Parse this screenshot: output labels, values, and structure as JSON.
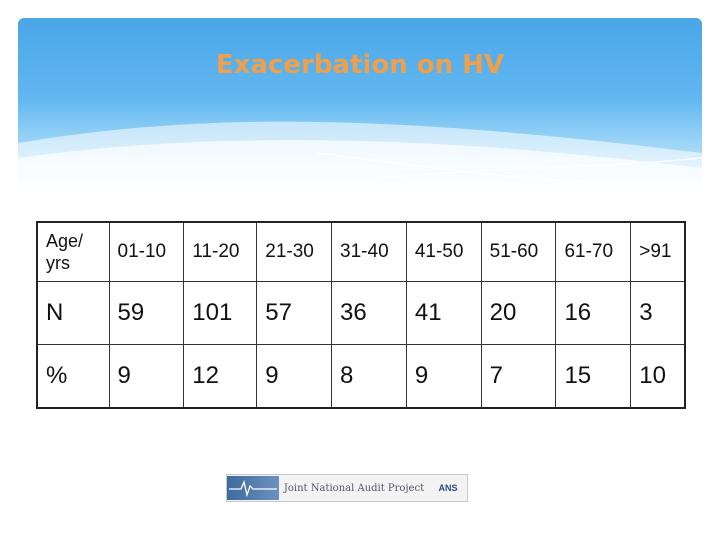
{
  "slide": {
    "title": "Exacerbation on HV"
  },
  "table": {
    "header_label_line1": "Age/",
    "header_label_line2": "yrs",
    "age_groups": [
      "01-10",
      "11-20",
      "21-30",
      "31-40",
      "41-50",
      "51-60",
      "61-70",
      ">91"
    ],
    "rows": [
      {
        "label": "N",
        "values": [
          "59",
          "101",
          "57",
          "36",
          "41",
          "20",
          "16",
          "3"
        ]
      },
      {
        "label": "%",
        "values": [
          "9",
          "12",
          "9",
          "8",
          "9",
          "7",
          "15",
          "10"
        ]
      }
    ]
  },
  "footer": {
    "logo_text": "Joint National Audit Project",
    "logo_right_text": "ANS"
  },
  "colors": {
    "title": "#f0a04b",
    "header_blue": "#4aa6e8"
  }
}
